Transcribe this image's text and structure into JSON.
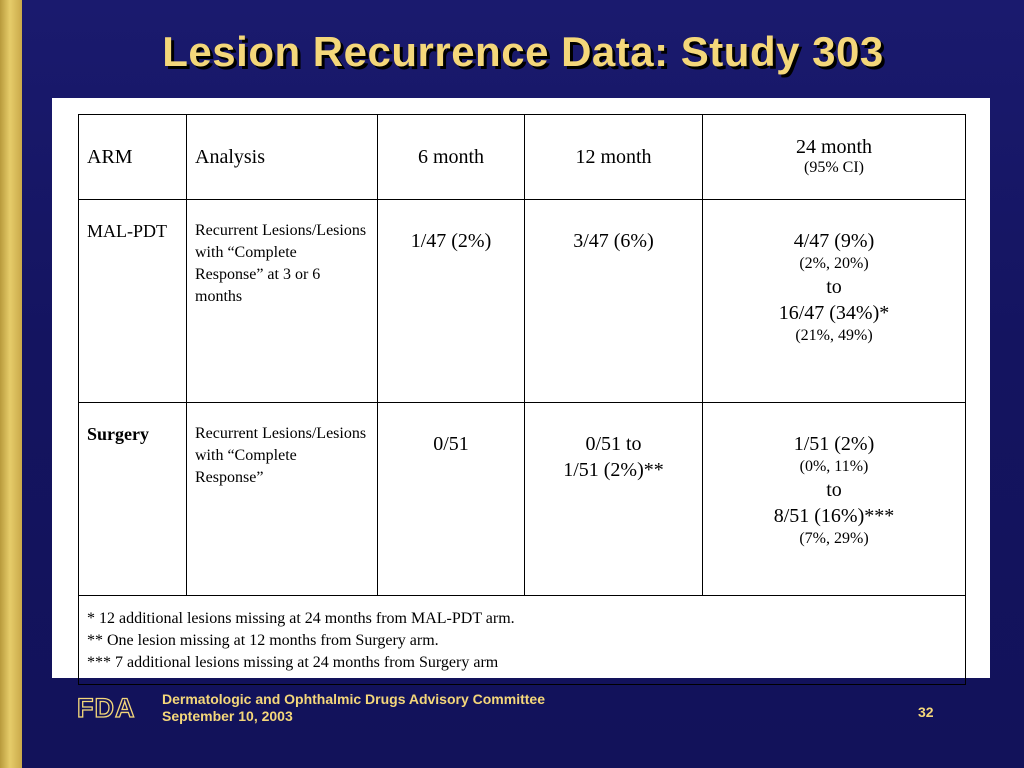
{
  "slide": {
    "title": "Lesion Recurrence Data: Study 303",
    "page_number": "32"
  },
  "table": {
    "headers": {
      "arm": "ARM",
      "analysis": "Analysis",
      "m6": "6 month",
      "m12": "12 month",
      "m24": "24 month",
      "m24_note": "(95% CI)"
    },
    "rows": [
      {
        "arm": "MAL-PDT",
        "analysis": "Recurrent Lesions/Lesions with “Complete Response” at 3 or 6 months",
        "m6": "1/47 (2%)",
        "m12": "3/47 (6%)",
        "m24_a": "4/47 (9%)",
        "m24_a_ci": "(2%, 20%)",
        "m24_to": "to",
        "m24_b": "16/47 (34%)*",
        "m24_b_ci": "(21%, 49%)"
      },
      {
        "arm": "Surgery",
        "analysis": "Recurrent Lesions/Lesions with “Complete Response”",
        "m6": "0/51",
        "m12_a": "0/51 to",
        "m12_b": "1/51 (2%)**",
        "m24_a": "1/51 (2%)",
        "m24_a_ci": "(0%, 11%)",
        "m24_to": "to",
        "m24_b": "8/51 (16%)***",
        "m24_b_ci": "(7%, 29%)"
      }
    ],
    "footnotes": [
      "* 12 additional lesions missing at 24 months from MAL-PDT arm.",
      "** One lesion missing at 12 months from Surgery arm.",
      "***  7 additional lesions missing at 24 months from Surgery arm"
    ]
  },
  "footer": {
    "logo_text": "FDA",
    "committee": "Dermatologic and Ophthalmic Drugs Advisory Committee",
    "date": "September 10, 2003"
  },
  "colors": {
    "background": "#16166a",
    "title": "#f4d77a",
    "accent_bar": "#d4b655"
  }
}
